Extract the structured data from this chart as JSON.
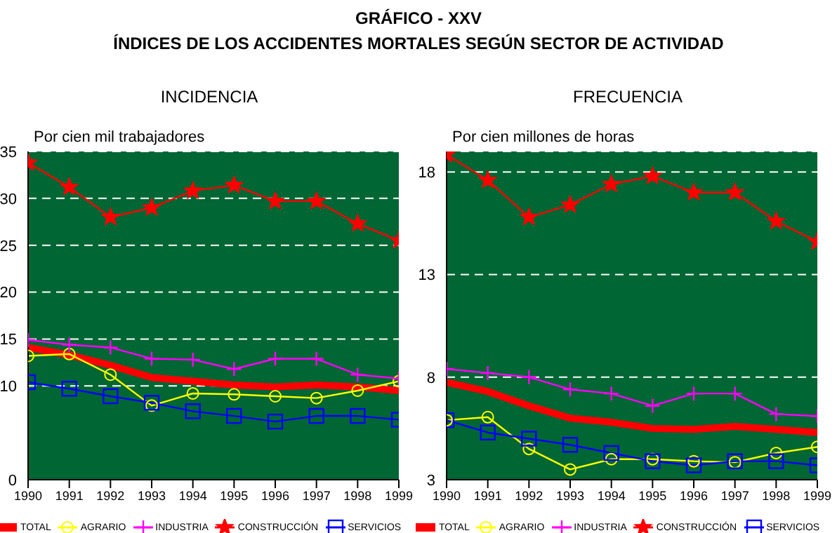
{
  "chart_data": [
    {
      "type": "line",
      "title": "INCIDENCIA",
      "ylabel": "Por cien mil trabajadores",
      "annotations": [
        "GRÁFICO - XXV",
        "ÍNDICES DE LOS ACCIDENTES MORTALES SEGÚN SECTOR DE ACTIVIDAD"
      ],
      "x": [
        1990,
        1991,
        1992,
        1993,
        1994,
        1995,
        1996,
        1997,
        1998,
        1999
      ],
      "xlim": [
        1990,
        1999
      ],
      "xticks": [
        1990,
        1991,
        1992,
        1993,
        1994,
        1995,
        1996,
        1997,
        1998,
        1999
      ],
      "ylim": [
        0,
        35
      ],
      "yticks": [
        0,
        10,
        15,
        20,
        25,
        30,
        35
      ],
      "grid": "y",
      "legend": "bottom",
      "series": [
        {
          "name": "TOTAL",
          "color": "#ff0000",
          "marker": "none",
          "values": [
            14.1,
            13.3,
            12.2,
            10.9,
            10.5,
            10.1,
            9.9,
            10.1,
            9.9,
            9.5
          ]
        },
        {
          "name": "AGRARIO",
          "color": "#ffff00",
          "marker": "circle",
          "values": [
            13.2,
            13.4,
            11.2,
            7.9,
            9.2,
            9.1,
            8.9,
            8.7,
            9.5,
            10.5
          ]
        },
        {
          "name": "INDUSTRIA",
          "color": "#ff00ff",
          "marker": "cross",
          "values": [
            14.9,
            14.4,
            14.1,
            12.9,
            12.8,
            11.8,
            12.9,
            12.9,
            11.2,
            10.8
          ]
        },
        {
          "name": "CONSTRUCCIÓN",
          "color": "#ff0000",
          "marker": "star",
          "values": [
            33.8,
            31.2,
            28.0,
            29.0,
            30.8,
            31.4,
            29.7,
            29.7,
            27.3,
            25.5
          ]
        },
        {
          "name": "SERVICIOS",
          "color": "#0000ff",
          "marker": "square",
          "values": [
            10.4,
            9.7,
            8.9,
            8.2,
            7.3,
            6.8,
            6.2,
            6.8,
            6.8,
            6.4
          ]
        }
      ]
    },
    {
      "type": "line",
      "title": "FRECUENCIA",
      "ylabel": "Por cien millones de horas",
      "x": [
        1990,
        1991,
        1992,
        1993,
        1994,
        1995,
        1996,
        1997,
        1998,
        1999
      ],
      "xlim": [
        1990,
        1999
      ],
      "xticks": [
        1990,
        1991,
        1992,
        1993,
        1994,
        1995,
        1996,
        1997,
        1998,
        1999
      ],
      "ylim": [
        3,
        19
      ],
      "yticks": [
        3,
        8,
        13,
        18
      ],
      "grid": "y",
      "legend": "bottom",
      "series": [
        {
          "name": "TOTAL",
          "color": "#ff0000",
          "marker": "none",
          "values": [
            7.75,
            7.3,
            6.6,
            6.0,
            5.8,
            5.5,
            5.45,
            5.6,
            5.45,
            5.3
          ]
        },
        {
          "name": "AGRARIO",
          "color": "#ffff00",
          "marker": "circle",
          "values": [
            5.9,
            6.05,
            4.5,
            3.5,
            4.0,
            4.0,
            3.9,
            3.85,
            4.3,
            4.6
          ]
        },
        {
          "name": "INDUSTRIA",
          "color": "#ff00ff",
          "marker": "cross",
          "values": [
            8.4,
            8.2,
            8.0,
            7.4,
            7.2,
            6.6,
            7.2,
            7.2,
            6.2,
            6.1
          ]
        },
        {
          "name": "CONSTRUCCIÓN",
          "color": "#ff0000",
          "marker": "star",
          "values": [
            18.85,
            17.6,
            15.8,
            16.4,
            17.4,
            17.8,
            17.0,
            17.0,
            15.6,
            14.6
          ]
        },
        {
          "name": "SERVICIOS",
          "color": "#0000ff",
          "marker": "square",
          "values": [
            5.9,
            5.3,
            5.0,
            4.7,
            4.3,
            3.9,
            3.7,
            3.9,
            3.9,
            3.7
          ]
        }
      ]
    }
  ]
}
